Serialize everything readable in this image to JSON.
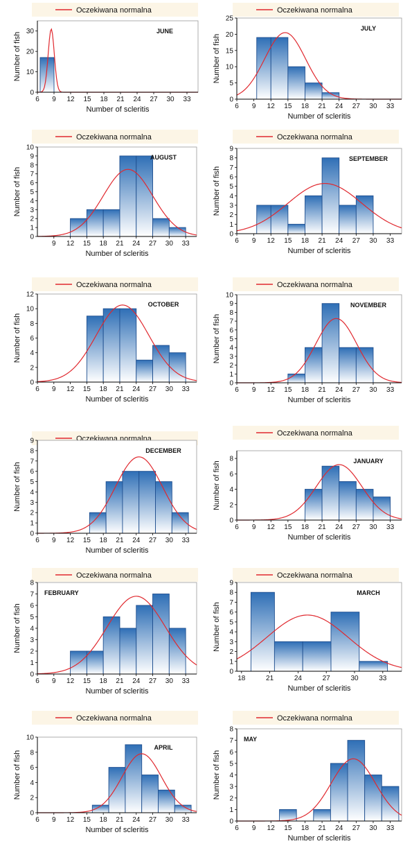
{
  "legend_label": "Oczekiwana normalna",
  "xlabel": "Number of scleritis",
  "ylabel": "Number of fish",
  "colors": {
    "bar_fill_top": "#2f6fb6",
    "bar_fill_bottom": "#ffffff",
    "bar_stroke": "#1f4f8f",
    "normal_curve": "#e0282e",
    "legend_bg": "#fcf5e6"
  },
  "chart_data": [
    {
      "type": "bar",
      "title": "JUNE",
      "x_ticks": [
        6,
        9,
        12,
        15,
        18,
        21,
        24,
        27,
        30,
        33
      ],
      "xlim": [
        6,
        35
      ],
      "y_ticks": [
        0,
        10,
        20,
        30
      ],
      "ylim": [
        0,
        35
      ],
      "bins": [
        {
          "from": 6.5,
          "to": 9,
          "value": 17
        }
      ],
      "normal": {
        "mean": 8.5,
        "sd": 0.55,
        "peak": 31
      }
    },
    {
      "type": "bar",
      "title": "JULY",
      "x_ticks": [
        6,
        9,
        12,
        15,
        18,
        21,
        24,
        27,
        30,
        33
      ],
      "xlim": [
        6,
        35
      ],
      "y_ticks": [
        0,
        5,
        10,
        15,
        20,
        25
      ],
      "ylim": [
        0,
        25
      ],
      "bins": [
        {
          "from": 9.5,
          "to": 12,
          "value": 19
        },
        {
          "from": 12,
          "to": 15,
          "value": 19
        },
        {
          "from": 15,
          "to": 18,
          "value": 10
        },
        {
          "from": 18,
          "to": 21,
          "value": 5
        },
        {
          "from": 21,
          "to": 24,
          "value": 2
        },
        {
          "from": 24,
          "to": 27,
          "value": 0
        }
      ],
      "normal": {
        "mean": 14.5,
        "sd": 3.6,
        "peak": 20.5
      }
    },
    {
      "type": "bar",
      "title": "AUGUST",
      "x_ticks": [
        9,
        12,
        15,
        18,
        21,
        24,
        27,
        30,
        33
      ],
      "xlim": [
        6,
        35
      ],
      "y_ticks": [
        0,
        1,
        2,
        3,
        4,
        5,
        6,
        7,
        8,
        9,
        10
      ],
      "ylim": [
        0,
        10
      ],
      "bins": [
        {
          "from": 12,
          "to": 15,
          "value": 2
        },
        {
          "from": 15,
          "to": 18,
          "value": 3
        },
        {
          "from": 18,
          "to": 21,
          "value": 3
        },
        {
          "from": 21,
          "to": 24,
          "value": 9
        },
        {
          "from": 24,
          "to": 27,
          "value": 9
        },
        {
          "from": 27,
          "to": 30,
          "value": 2
        },
        {
          "from": 30,
          "to": 33,
          "value": 1
        }
      ],
      "normal": {
        "mean": 22.5,
        "sd": 4.5,
        "peak": 7.5
      }
    },
    {
      "type": "bar",
      "title": "SEPTEMBER",
      "x_ticks": [
        6,
        9,
        12,
        15,
        18,
        21,
        24,
        27,
        30,
        33
      ],
      "xlim": [
        6,
        35
      ],
      "y_ticks": [
        0,
        1,
        2,
        3,
        4,
        5,
        6,
        7,
        8,
        9
      ],
      "ylim": [
        0,
        9
      ],
      "bins": [
        {
          "from": 9.5,
          "to": 12,
          "value": 3
        },
        {
          "from": 12,
          "to": 15,
          "value": 3
        },
        {
          "from": 15,
          "to": 18,
          "value": 1
        },
        {
          "from": 18,
          "to": 21,
          "value": 4
        },
        {
          "from": 21,
          "to": 24,
          "value": 8
        },
        {
          "from": 24,
          "to": 27,
          "value": 3
        },
        {
          "from": 27,
          "to": 30,
          "value": 4
        }
      ],
      "normal": {
        "mean": 21.5,
        "sd": 6.5,
        "peak": 5.3
      }
    },
    {
      "type": "bar",
      "title": "OCTOBER",
      "x_ticks": [
        6,
        9,
        12,
        15,
        18,
        21,
        24,
        27,
        30,
        33
      ],
      "xlim": [
        6,
        35
      ],
      "y_ticks": [
        0,
        2,
        4,
        6,
        8,
        10,
        12
      ],
      "ylim": [
        0,
        12
      ],
      "bins": [
        {
          "from": 15,
          "to": 18,
          "value": 9
        },
        {
          "from": 18,
          "to": 21,
          "value": 10
        },
        {
          "from": 21,
          "to": 24,
          "value": 10
        },
        {
          "from": 24,
          "to": 27,
          "value": 3
        },
        {
          "from": 27,
          "to": 30,
          "value": 5
        },
        {
          "from": 30,
          "to": 33,
          "value": 4
        }
      ],
      "normal": {
        "mean": 21.5,
        "sd": 4.8,
        "peak": 10.5
      }
    },
    {
      "type": "bar",
      "title": "NOVEMBER",
      "x_ticks": [
        6,
        9,
        12,
        15,
        18,
        21,
        24,
        27,
        30,
        33
      ],
      "xlim": [
        6,
        35
      ],
      "y_ticks": [
        0,
        1,
        2,
        3,
        4,
        5,
        6,
        7,
        8,
        9,
        10
      ],
      "ylim": [
        0,
        10
      ],
      "bins": [
        {
          "from": 15,
          "to": 18,
          "value": 1
        },
        {
          "from": 18,
          "to": 21,
          "value": 4
        },
        {
          "from": 21,
          "to": 24,
          "value": 9
        },
        {
          "from": 24,
          "to": 27,
          "value": 4
        },
        {
          "from": 27,
          "to": 30,
          "value": 4
        }
      ],
      "normal": {
        "mean": 23.5,
        "sd": 3.6,
        "peak": 7.3
      }
    },
    {
      "type": "bar",
      "title": "DECEMBER",
      "x_ticks": [
        6,
        9,
        12,
        15,
        18,
        21,
        24,
        27,
        30,
        33
      ],
      "xlim": [
        6,
        35
      ],
      "y_ticks": [
        0,
        1,
        2,
        3,
        4,
        5,
        6,
        7,
        8,
        9
      ],
      "ylim": [
        0,
        9
      ],
      "bins": [
        {
          "from": 15.5,
          "to": 18.5,
          "value": 2
        },
        {
          "from": 18.5,
          "to": 21.5,
          "value": 5
        },
        {
          "from": 21.5,
          "to": 24.5,
          "value": 6
        },
        {
          "from": 24.5,
          "to": 27.5,
          "value": 6
        },
        {
          "from": 27.5,
          "to": 30.5,
          "value": 5
        },
        {
          "from": 30.5,
          "to": 33.5,
          "value": 2
        }
      ],
      "normal": {
        "mean": 24.5,
        "sd": 4.3,
        "peak": 7.4
      }
    },
    {
      "type": "bar",
      "title": "JANUARY",
      "x_ticks": [
        6,
        9,
        12,
        15,
        18,
        21,
        24,
        27,
        30,
        33
      ],
      "xlim": [
        6,
        35
      ],
      "y_ticks": [
        0,
        2,
        4,
        6,
        8
      ],
      "ylim": [
        0,
        9
      ],
      "bins": [
        {
          "from": 18,
          "to": 21,
          "value": 4
        },
        {
          "from": 21,
          "to": 24,
          "value": 7
        },
        {
          "from": 24,
          "to": 27,
          "value": 5
        },
        {
          "from": 27,
          "to": 30,
          "value": 4
        },
        {
          "from": 30,
          "to": 33,
          "value": 3
        }
      ],
      "normal": {
        "mean": 24,
        "sd": 4,
        "peak": 7.2
      }
    },
    {
      "type": "bar",
      "title": "FEBRUARY",
      "x_ticks": [
        6,
        9,
        12,
        15,
        18,
        21,
        24,
        27,
        30,
        33
      ],
      "xlim": [
        6,
        35
      ],
      "y_ticks": [
        0,
        1,
        2,
        3,
        4,
        5,
        6,
        7,
        8
      ],
      "ylim": [
        0,
        8
      ],
      "bins": [
        {
          "from": 12,
          "to": 15,
          "value": 2
        },
        {
          "from": 15,
          "to": 18,
          "value": 2
        },
        {
          "from": 18,
          "to": 21,
          "value": 5
        },
        {
          "from": 21,
          "to": 24,
          "value": 4
        },
        {
          "from": 24,
          "to": 27,
          "value": 6
        },
        {
          "from": 27,
          "to": 30,
          "value": 7
        },
        {
          "from": 30,
          "to": 33,
          "value": 4
        }
      ],
      "normal": {
        "mean": 24,
        "sd": 5.3,
        "peak": 6.8
      }
    },
    {
      "type": "bar",
      "title": "MARCH",
      "x_ticks": [
        18,
        21,
        24,
        27,
        30,
        33
      ],
      "xlim": [
        17.5,
        35
      ],
      "y_ticks": [
        0,
        1,
        2,
        3,
        4,
        5,
        6,
        7,
        8,
        9
      ],
      "ylim": [
        0,
        9
      ],
      "bins": [
        {
          "from": 19,
          "to": 21.5,
          "value": 8
        },
        {
          "from": 21.5,
          "to": 24.5,
          "value": 3
        },
        {
          "from": 24.5,
          "to": 27.5,
          "value": 3
        },
        {
          "from": 27.5,
          "to": 30.5,
          "value": 6
        },
        {
          "from": 30.5,
          "to": 33.5,
          "value": 1
        }
      ],
      "normal": {
        "mean": 25,
        "sd": 4.3,
        "peak": 5.7
      }
    },
    {
      "type": "bar",
      "title": "APRIL",
      "x_ticks": [
        6,
        9,
        12,
        15,
        18,
        21,
        24,
        27,
        30,
        33
      ],
      "xlim": [
        6,
        35
      ],
      "y_ticks": [
        0,
        2,
        4,
        6,
        8,
        10
      ],
      "ylim": [
        0,
        10
      ],
      "bins": [
        {
          "from": 16,
          "to": 19,
          "value": 1
        },
        {
          "from": 19,
          "to": 22,
          "value": 6
        },
        {
          "from": 22,
          "to": 25,
          "value": 9
        },
        {
          "from": 25,
          "to": 28,
          "value": 5
        },
        {
          "from": 28,
          "to": 31,
          "value": 3
        },
        {
          "from": 31,
          "to": 34,
          "value": 1
        }
      ],
      "normal": {
        "mean": 25,
        "sd": 3.6,
        "peak": 7.8
      }
    },
    {
      "type": "bar",
      "title": "MAY",
      "x_ticks": [
        6,
        9,
        12,
        15,
        18,
        21,
        24,
        27,
        30,
        33
      ],
      "xlim": [
        6,
        35
      ],
      "y_ticks": [
        0,
        1,
        2,
        3,
        4,
        5,
        6,
        7,
        8
      ],
      "ylim": [
        0,
        8
      ],
      "bins": [
        {
          "from": 13.5,
          "to": 16.5,
          "value": 1
        },
        {
          "from": 19.5,
          "to": 22.5,
          "value": 1
        },
        {
          "from": 22.5,
          "to": 25.5,
          "value": 5
        },
        {
          "from": 25.5,
          "to": 28.5,
          "value": 7
        },
        {
          "from": 28.5,
          "to": 31.5,
          "value": 4
        },
        {
          "from": 31.5,
          "to": 34.5,
          "value": 3
        }
      ],
      "normal": {
        "mean": 26.5,
        "sd": 3.9,
        "peak": 5.4
      }
    }
  ]
}
